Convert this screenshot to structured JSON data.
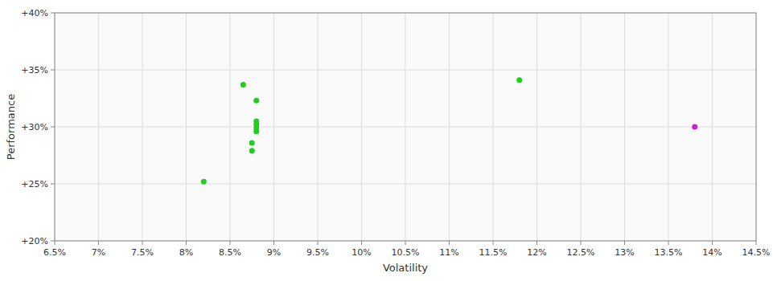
{
  "chart_data": {
    "type": "scatter",
    "xlabel": "Volatility",
    "ylabel": "Performance",
    "xlim": [
      0.065,
      0.145
    ],
    "ylim": [
      0.2,
      0.4
    ],
    "xticks": [
      {
        "value": 0.065,
        "label": "6.5%"
      },
      {
        "value": 0.07,
        "label": "7%"
      },
      {
        "value": 0.075,
        "label": "7.5%"
      },
      {
        "value": 0.08,
        "label": "8%"
      },
      {
        "value": 0.085,
        "label": "8.5%"
      },
      {
        "value": 0.09,
        "label": "9%"
      },
      {
        "value": 0.095,
        "label": "9.5%"
      },
      {
        "value": 0.1,
        "label": "10%"
      },
      {
        "value": 0.105,
        "label": "10.5%"
      },
      {
        "value": 0.11,
        "label": "11%"
      },
      {
        "value": 0.115,
        "label": "11.5%"
      },
      {
        "value": 0.12,
        "label": "12%"
      },
      {
        "value": 0.125,
        "label": "12.5%"
      },
      {
        "value": 0.13,
        "label": "13%"
      },
      {
        "value": 0.135,
        "label": "13.5%"
      },
      {
        "value": 0.14,
        "label": "14%"
      },
      {
        "value": 0.145,
        "label": "14.5%"
      }
    ],
    "yticks": [
      {
        "value": 0.2,
        "label": "+20%"
      },
      {
        "value": 0.25,
        "label": "+25%"
      },
      {
        "value": 0.3,
        "label": "+30%"
      },
      {
        "value": 0.35,
        "label": "+35%"
      },
      {
        "value": 0.4,
        "label": "+40%"
      }
    ],
    "grid": true,
    "series": [
      {
        "color": "#22cc22",
        "x": [
          0.0865,
          0.088,
          0.088,
          0.088,
          0.088,
          0.088,
          0.0875,
          0.0875,
          0.082,
          0.118
        ],
        "values": [
          0.337,
          0.323,
          0.305,
          0.302,
          0.299,
          0.296,
          0.286,
          0.279,
          0.252,
          0.341
        ]
      },
      {
        "color": "#cc22cc",
        "x": [
          0.138
        ],
        "values": [
          0.3
        ]
      }
    ]
  }
}
